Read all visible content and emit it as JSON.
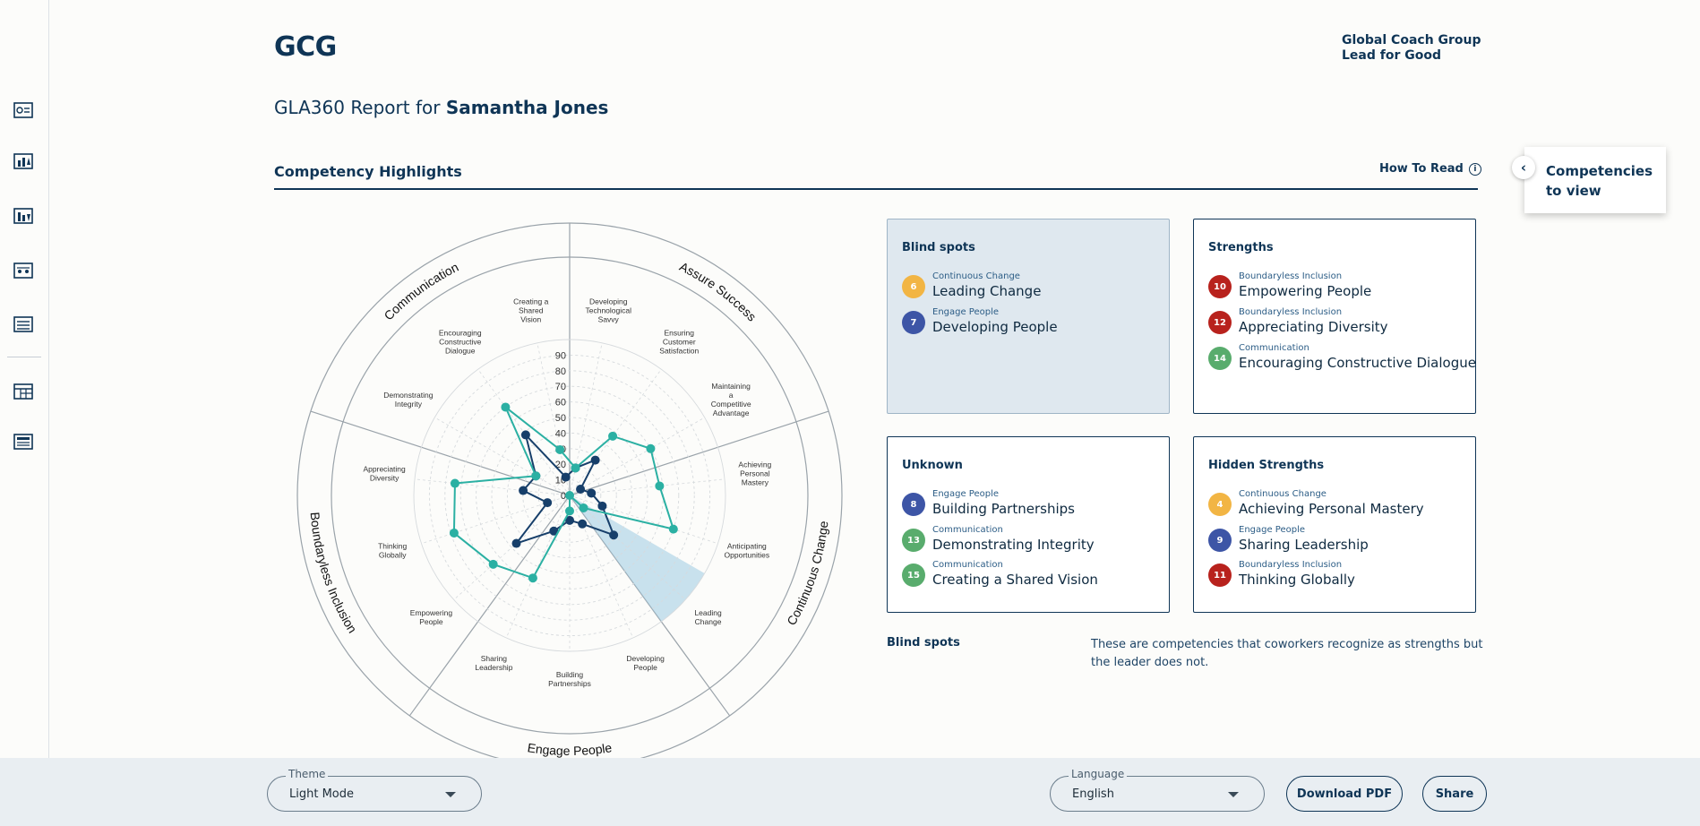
{
  "header": {
    "logo": "GCG",
    "brand_line1": "Global Coach Group",
    "brand_line2": "Lead for Good",
    "report_prefix": "GLA360 Report for",
    "report_name": "Samantha Jones"
  },
  "sidebar": {
    "icons": [
      "dashboard-icon",
      "ranking-up-icon",
      "ranking-down-icon",
      "compare-icon",
      "list-icon",
      "table-icon",
      "document-icon"
    ]
  },
  "section": {
    "title": "Competency Highlights",
    "how_to_read": "How To Read",
    "info_glyph": "i"
  },
  "competencies_panel": {
    "label": "Competencies to view",
    "collapse_glyph": "‹"
  },
  "colors": {
    "navy": "#0f3556",
    "self_series": "#173f6a",
    "others_series": "#2bb0a3",
    "highlight": "#9ccbe2"
  },
  "chart_data": {
    "type": "radar",
    "scale_ticks": [
      "0",
      "10",
      "20",
      "30",
      "40",
      "50",
      "60",
      "70",
      "80",
      "90"
    ],
    "rmax": 100,
    "groups": [
      "Assure Success",
      "Continuous Change",
      "Engage People",
      "Boundaryless Inclusion",
      "Communication"
    ],
    "axes": [
      "Developing Technological Savvy",
      "Ensuring Customer Satisfaction",
      "Maintaining a Competitive Advantage",
      "Achieving Personal Mastery",
      "Anticipating Opportunities",
      "Leading Change",
      "Developing People",
      "Building Partnerships",
      "Sharing Leadership",
      "Empowering People",
      "Thinking Globally",
      "Appreciating Diversity",
      "Demonstrating Integrity",
      "Encouraging Constructive Dialogue",
      "Creating a Shared Vision"
    ],
    "highlighted_axis": "Leading Change",
    "series": [
      {
        "values": [
          18,
          28,
          8,
          14,
          22,
          38,
          20,
          16,
          25,
          46,
          15,
          30,
          25,
          48,
          12
        ]
      },
      {
        "values": [
          18,
          47,
          60,
          58,
          70,
          12,
          0,
          10,
          58,
          66,
          78,
          74,
          25,
          70,
          30
        ]
      }
    ]
  },
  "cards": {
    "blind_spots": {
      "title": "Blind spots",
      "items": [
        {
          "num": "6",
          "cat": "Continuous Change",
          "name": "Leading Change",
          "color": "#f2b544"
        },
        {
          "num": "7",
          "cat": "Engage People",
          "name": "Developing People",
          "color": "#3d55a6"
        }
      ]
    },
    "strengths": {
      "title": "Strengths",
      "items": [
        {
          "num": "10",
          "cat": "Boundaryless Inclusion",
          "name": "Empowering People",
          "color": "#b8221d"
        },
        {
          "num": "12",
          "cat": "Boundaryless Inclusion",
          "name": "Appreciating Diversity",
          "color": "#b8221d"
        },
        {
          "num": "14",
          "cat": "Communication",
          "name": "Encouraging Constructive Dialogue",
          "color": "#59ac6d"
        }
      ]
    },
    "unknown": {
      "title": "Unknown",
      "items": [
        {
          "num": "8",
          "cat": "Engage People",
          "name": "Building Partnerships",
          "color": "#3d55a6"
        },
        {
          "num": "13",
          "cat": "Communication",
          "name": "Demonstrating Integrity",
          "color": "#59ac6d"
        },
        {
          "num": "15",
          "cat": "Communication",
          "name": "Creating a Shared Vision",
          "color": "#59ac6d"
        }
      ]
    },
    "hidden_strengths": {
      "title": "Hidden Strengths",
      "items": [
        {
          "num": "4",
          "cat": "Continuous Change",
          "name": "Achieving Personal Mastery",
          "color": "#f2b544"
        },
        {
          "num": "9",
          "cat": "Engage People",
          "name": "Sharing Leadership",
          "color": "#3d55a6"
        },
        {
          "num": "11",
          "cat": "Boundaryless Inclusion",
          "name": "Thinking Globally",
          "color": "#b8221d"
        }
      ]
    }
  },
  "legend": {
    "title": "Blind spots",
    "description": "These are competencies that coworkers recognize as strengths but the leader does not."
  },
  "footer": {
    "theme_label": "Theme",
    "theme_value": "Light Mode",
    "language_label": "Language",
    "language_value": "English",
    "download_label": "Download PDF",
    "share_label": "Share"
  }
}
